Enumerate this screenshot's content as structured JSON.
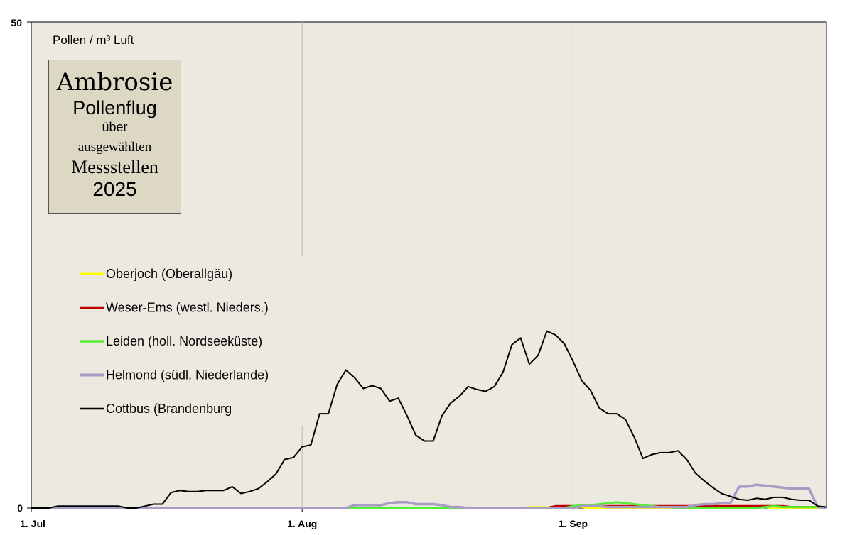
{
  "chart_data": {
    "type": "line",
    "unit_label": "Pollen  / m³ Luft",
    "title_lines": [
      "Ambrosie",
      "Pollenflug",
      "über",
      "ausgewählten",
      "Messstellen",
      "2025"
    ],
    "ylim": [
      0,
      50
    ],
    "y_ticks": [
      "50",
      "0"
    ],
    "x_range_days": [
      0,
      91
    ],
    "x_ticks": [
      {
        "label": "1. Jul",
        "day": 0
      },
      {
        "label": "1. Aug",
        "day": 31
      },
      {
        "label": "1. Sep",
        "day": 62
      }
    ],
    "background": "#ece9e0",
    "series": [
      {
        "name": "Oberjoch (Oberallgäu)",
        "color": "#ffff00",
        "width": 2.5,
        "values": [
          0,
          0,
          0,
          0,
          0,
          0,
          0,
          0,
          0,
          0,
          0,
          0,
          0,
          0,
          0,
          0,
          0,
          0,
          0,
          0,
          0,
          0,
          0,
          0,
          0,
          0,
          0,
          0,
          0,
          0,
          0,
          0,
          0,
          0,
          0,
          0,
          0,
          0,
          0,
          0,
          0,
          0,
          0,
          0,
          0,
          0,
          0,
          0,
          0,
          0,
          0,
          0,
          0,
          0,
          0,
          0,
          0,
          0.1,
          0.1,
          0.1,
          0.1,
          0.1,
          0.1,
          0.1,
          0,
          0,
          0,
          0,
          0,
          0,
          0,
          0,
          0,
          0,
          0,
          0,
          0,
          0,
          0,
          0,
          0.1,
          0.1,
          0.1,
          0.1,
          0.1,
          0,
          0,
          0,
          0,
          0,
          0,
          0
        ]
      },
      {
        "name": "Weser-Ems (westl. Nieders.)",
        "color": "#c00000",
        "width": 3,
        "values": [
          0,
          0,
          0,
          0,
          0,
          0,
          0,
          0,
          0,
          0,
          0,
          0,
          0,
          0,
          0,
          0,
          0,
          0,
          0,
          0,
          0,
          0,
          0,
          0,
          0,
          0,
          0,
          0,
          0,
          0,
          0,
          0,
          0,
          0,
          0,
          0,
          0,
          0,
          0,
          0,
          0,
          0,
          0,
          0,
          0,
          0,
          0,
          0,
          0,
          0,
          0,
          0,
          0,
          0,
          0,
          0,
          0,
          0,
          0,
          0,
          0.2,
          0.2,
          0.2,
          0.2,
          0.2,
          0.2,
          0.2,
          0.2,
          0.2,
          0.2,
          0.2,
          0.2,
          0.2,
          0.2,
          0.2,
          0.2,
          0.2,
          0.2,
          0.2,
          0.2,
          0.2,
          0.2,
          0.2,
          0.2,
          0.2,
          0.2,
          0.2,
          0.1,
          0.1,
          0.1,
          0.1,
          0.1
        ]
      },
      {
        "name": "Leiden (holl. Nordseeküste)",
        "color": "#55ee33",
        "width": 3,
        "values": [
          0,
          0,
          0,
          0,
          0,
          0,
          0,
          0,
          0,
          0,
          0,
          0,
          0,
          0,
          0,
          0,
          0,
          0,
          0,
          0,
          0,
          0,
          0,
          0,
          0,
          0,
          0,
          0,
          0,
          0,
          0,
          0,
          0,
          0,
          0,
          0,
          0,
          0,
          0,
          0,
          0,
          0,
          0,
          0,
          0,
          0,
          0,
          0,
          0,
          0,
          0,
          0,
          0,
          0,
          0,
          0,
          0,
          0,
          0,
          0,
          0,
          0,
          0.2,
          0.3,
          0.3,
          0.4,
          0.5,
          0.6,
          0.5,
          0.4,
          0.3,
          0.2,
          0.1,
          0.1,
          0,
          0,
          0,
          0,
          0,
          0,
          0,
          0,
          0,
          0,
          0.1,
          0.2,
          0.1,
          0.1,
          0.1,
          0.1,
          0.1,
          0.1
        ]
      },
      {
        "name": "Helmond (südl. Niederlande)",
        "color": "#a89cc4",
        "width": 3.5,
        "values": [
          0,
          0,
          0,
          0,
          0,
          0,
          0,
          0,
          0,
          0,
          0,
          0,
          0,
          0,
          0,
          0,
          0,
          0,
          0,
          0,
          0,
          0,
          0,
          0,
          0,
          0,
          0,
          0,
          0,
          0,
          0,
          0,
          0,
          0,
          0,
          0,
          0,
          0.3,
          0.3,
          0.3,
          0.3,
          0.5,
          0.6,
          0.6,
          0.4,
          0.4,
          0.4,
          0.3,
          0.1,
          0.1,
          0,
          0,
          0,
          0,
          0,
          0,
          0,
          0,
          0,
          0,
          0,
          0,
          0,
          0.2,
          0.2,
          0.2,
          0.1,
          0.1,
          0.1,
          0.1,
          0.1,
          0.1,
          0.1,
          0.1,
          0.1,
          0.1,
          0.3,
          0.4,
          0.4,
          0.5,
          0.5,
          2.2,
          2.2,
          2.4,
          2.3,
          2.2,
          2.1,
          2.0,
          2.0,
          2.0,
          0.1,
          0
        ]
      },
      {
        "name": "Cottbus (Brandenburg",
        "color": "#000000",
        "width": 2,
        "values": [
          0,
          0,
          0,
          0.2,
          0.2,
          0.2,
          0.2,
          0.2,
          0.2,
          0.2,
          0.2,
          0,
          0,
          0.2,
          0.4,
          0.4,
          1.6,
          1.8,
          1.7,
          1.7,
          1.8,
          1.8,
          1.8,
          2.2,
          1.5,
          1.7,
          2.0,
          2.7,
          3.5,
          5.0,
          5.2,
          6.3,
          6.5,
          9.7,
          9.7,
          12.7,
          14.2,
          13.4,
          12.3,
          12.6,
          12.3,
          11.0,
          11.3,
          9.5,
          7.5,
          6.9,
          6.9,
          9.5,
          10.8,
          11.5,
          12.5,
          12.2,
          12.0,
          12.5,
          14.0,
          16.8,
          17.5,
          14.8,
          15.7,
          18.2,
          17.8,
          16.9,
          15.1,
          13.1,
          12.1,
          10.3,
          9.7,
          9.7,
          9.1,
          7.3,
          5.1,
          5.5,
          5.7,
          5.7,
          5.9,
          5.0,
          3.6,
          2.8,
          2.1,
          1.5,
          1.2,
          0.9,
          0.8,
          1.0,
          0.9,
          1.1,
          1.1,
          0.9,
          0.8,
          0.8,
          0.2,
          0.1
        ]
      }
    ]
  }
}
